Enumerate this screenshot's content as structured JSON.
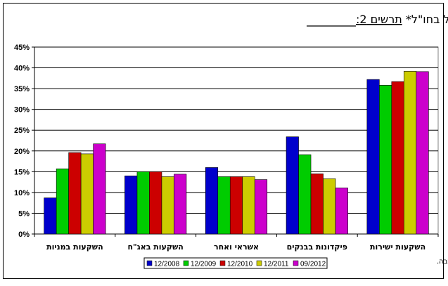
{
  "chart_data": {
    "type": "bar",
    "title_prefix": "תרשים 2:",
    "title_rest": "הרכב תיק הנכסים של תושבי ישראל בחו\"ל*",
    "categories": [
      "השקעות ישירות",
      "פיקדונות בבנקים",
      "אשראי ואחר",
      "השקעות באג\"ח",
      "השקעות במניות"
    ],
    "series": [
      {
        "name": "12/2008",
        "color": "#0000CC",
        "values": [
          37.2,
          23.4,
          16.0,
          14.0,
          8.7
        ]
      },
      {
        "name": "12/2009",
        "color": "#00CC00",
        "values": [
          35.8,
          19.1,
          13.8,
          15.0,
          15.7
        ]
      },
      {
        "name": "12/2010",
        "color": "#CC0000",
        "values": [
          36.7,
          14.5,
          13.8,
          15.0,
          19.6
        ]
      },
      {
        "name": "12/2011",
        "color": "#CCCC00",
        "values": [
          39.2,
          13.3,
          13.8,
          13.8,
          19.3
        ]
      },
      {
        "name": "09/2012",
        "color": "#CC00CC",
        "values": [
          39.1,
          11.1,
          13.1,
          14.4,
          21.7
        ]
      }
    ],
    "y_ticks": [
      "0%",
      "5%",
      "10%",
      "15%",
      "20%",
      "25%",
      "30%",
      "35%",
      "40%",
      "45%"
    ],
    "ylim": [
      0,
      45
    ],
    "grid": true,
    "legend_position": "bottom"
  },
  "footnote": "*לא כולל נכסי רזרבה."
}
